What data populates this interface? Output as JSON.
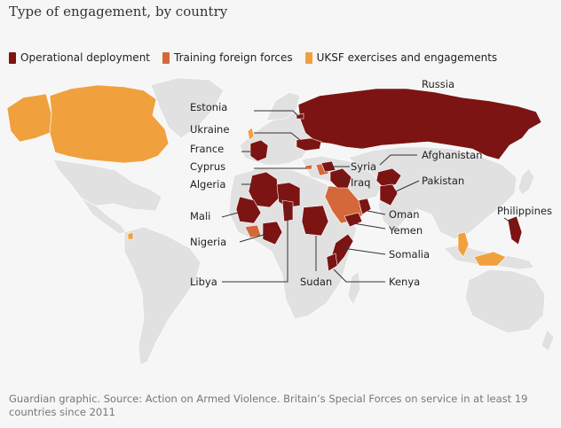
{
  "title": "Type of engagement, by country",
  "legend": [
    {
      "label": "Operational deployment",
      "color": "#7c1414"
    },
    {
      "label": "Training foreign forces",
      "color": "#d4683a"
    },
    {
      "label": "UKSF exercises and engagements",
      "color": "#f0a13e"
    }
  ],
  "labels": {
    "russia": "Russia",
    "estonia": "Estonia",
    "ukraine": "Ukraine",
    "france": "France",
    "cyprus": "Cyprus",
    "syria": "Syria",
    "algeria": "Algeria",
    "iraq": "Iraq",
    "afghanistan": "Afghanistan",
    "pakistan": "Pakistan",
    "mali": "Mali",
    "oman": "Oman",
    "philippines": "Philippines",
    "yemen": "Yemen",
    "nigeria": "Nigeria",
    "somalia": "Somalia",
    "libya": "Libya",
    "sudan": "Sudan",
    "kenya": "Kenya"
  },
  "footer": "Guardian graphic. Source: Action on Armed Violence. Britain’s Special Forces on service in at least 19 countries since 2011"
}
